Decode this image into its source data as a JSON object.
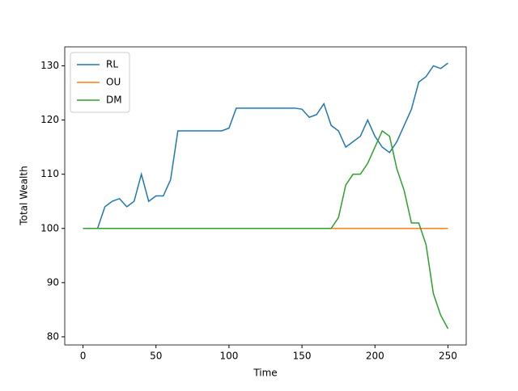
{
  "chart_data": {
    "type": "line",
    "xlabel": "Time",
    "ylabel": "Total Wealth",
    "x": [
      0,
      5,
      10,
      15,
      20,
      25,
      30,
      35,
      40,
      45,
      50,
      55,
      60,
      65,
      70,
      75,
      80,
      85,
      90,
      95,
      100,
      105,
      110,
      115,
      120,
      125,
      130,
      135,
      140,
      145,
      150,
      155,
      160,
      165,
      170,
      175,
      180,
      185,
      190,
      195,
      200,
      205,
      210,
      215,
      220,
      225,
      230,
      235,
      240,
      245,
      250
    ],
    "series": [
      {
        "name": "RL",
        "color": "#1f77b4",
        "values": [
          100,
          100,
          100,
          104,
          105,
          105.5,
          104,
          105,
          110,
          105,
          106,
          106,
          109,
          118,
          118,
          118,
          118,
          118,
          118,
          118,
          118.5,
          122.2,
          122.2,
          122.2,
          122.2,
          122.2,
          122.2,
          122.2,
          122.2,
          122.2,
          122,
          120.5,
          121,
          123,
          119,
          118,
          115,
          116,
          117,
          120,
          117,
          115,
          114,
          116,
          119,
          122,
          127,
          128,
          130,
          129.5,
          130.5
        ]
      },
      {
        "name": "OU",
        "color": "#ff7f0e",
        "values": [
          100,
          100,
          100,
          100,
          100,
          100,
          100,
          100,
          100,
          100,
          100,
          100,
          100,
          100,
          100,
          100,
          100,
          100,
          100,
          100,
          100,
          100,
          100,
          100,
          100,
          100,
          100,
          100,
          100,
          100,
          100,
          100,
          100,
          100,
          100,
          100,
          100,
          100,
          100,
          100,
          100,
          100,
          100,
          100,
          100,
          100,
          100,
          100,
          100,
          100,
          100
        ]
      },
      {
        "name": "DM",
        "color": "#2ca02c",
        "values": [
          100,
          100,
          100,
          100,
          100,
          100,
          100,
          100,
          100,
          100,
          100,
          100,
          100,
          100,
          100,
          100,
          100,
          100,
          100,
          100,
          100,
          100,
          100,
          100,
          100,
          100,
          100,
          100,
          100,
          100,
          100,
          100,
          100,
          100,
          100,
          102,
          108,
          110,
          110,
          112,
          115,
          118,
          117,
          111,
          107,
          101,
          101,
          97,
          88,
          84,
          81.5
        ]
      }
    ],
    "xlim": [
      -12.5,
      262.5
    ],
    "xticks": [
      0,
      50,
      100,
      150,
      200,
      250
    ],
    "ylim": [
      78.5,
      133.5
    ],
    "yticks": [
      80,
      90,
      100,
      110,
      120,
      130
    ],
    "legend": "upper left"
  }
}
